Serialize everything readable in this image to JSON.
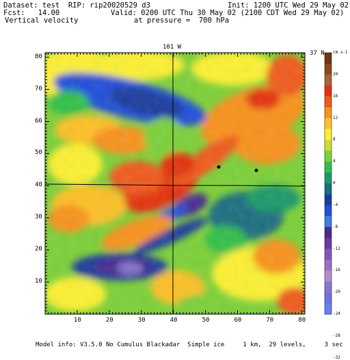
{
  "header": {
    "dataset": "Dataset: test  RIP: rip20020529 d3",
    "init": "Init: 1200 UTC Wed 29 May 02",
    "fcst": "Fcst:   14.00",
    "valid": "Valid: 0200 UTC Thu 30 May 02 (2100 CDT Wed 29 May 02)",
    "field": "Vertical velocity",
    "pressure": "at pressure =  700 hPa"
  },
  "map": {
    "meridian_label": "101 W",
    "parallel_label": "37 N",
    "x_ticks": [
      "10",
      "20",
      "30",
      "40",
      "50",
      "60",
      "70",
      "80"
    ],
    "y_ticks": [
      "10",
      "20",
      "30",
      "40",
      "50",
      "60",
      "70",
      "80"
    ]
  },
  "colorbar": {
    "units": "cm s-1",
    "labels": [
      "20",
      "16",
      "12",
      "8",
      "4",
      "0",
      "-4",
      "-8",
      "-12",
      "-16",
      "-20",
      "-24",
      "-28",
      "-32"
    ],
    "colors": [
      "#703410",
      "#8a4a1c",
      "#a86434",
      "#e23010",
      "#f05a1a",
      "#f8921e",
      "#fcc028",
      "#fcf030",
      "#c8e030",
      "#7cd038",
      "#30c048",
      "#1a9a6a",
      "#1a6e80",
      "#1a3c9c",
      "#2450d8",
      "#3c7ce8",
      "#4a2a90",
      "#6a3aa8",
      "#8a52b8",
      "#a06ec4",
      "#b48ad0",
      "#8878d0",
      "#7070e0",
      "#6a80f0"
    ]
  },
  "footer": {
    "model_info": "Model info: V3.5.0 No Cumulus Blackadar  Simple ice     1 km,  29 levels,     3 sec"
  }
}
